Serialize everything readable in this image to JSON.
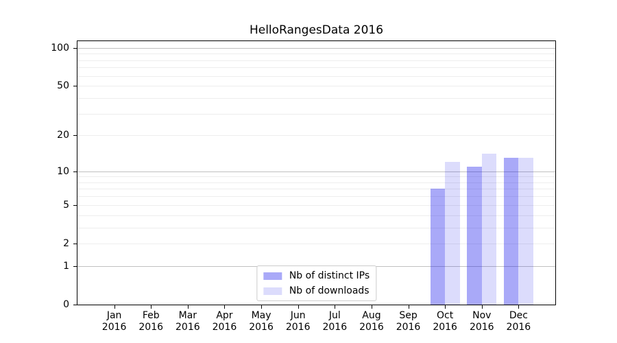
{
  "chart_data": {
    "type": "bar",
    "title": "HelloRangesData 2016",
    "categories": [
      "Jan 2016",
      "Feb 2016",
      "Mar 2016",
      "Apr 2016",
      "May 2016",
      "Jun 2016",
      "Jul 2016",
      "Aug 2016",
      "Sep 2016",
      "Oct 2016",
      "Nov 2016",
      "Dec 2016"
    ],
    "series": [
      {
        "name": "Nb of distinct IPs",
        "color": "#0a0aeb",
        "alpha": 0.35,
        "values": [
          0,
          0,
          0,
          0,
          0,
          0,
          0,
          0,
          0,
          7,
          11,
          13
        ]
      },
      {
        "name": "Nb of downloads",
        "color": "#0a0aeb",
        "alpha": 0.14,
        "values": [
          0,
          0,
          0,
          0,
          0,
          0,
          0,
          0,
          0,
          12,
          14,
          13
        ]
      }
    ],
    "yscale": "log1p",
    "ylim": [
      0,
      113
    ],
    "yticks": [
      0,
      1,
      2,
      5,
      10,
      20,
      50,
      100
    ],
    "grid": {
      "on": true,
      "major_lines": [
        1,
        10,
        100
      ],
      "minor_lines": [
        2,
        3,
        4,
        5,
        6,
        7,
        8,
        9,
        20,
        30,
        40,
        50,
        60,
        70,
        80,
        90
      ],
      "major_color": "#c0c0c0",
      "minor_color": "#ededed"
    },
    "legend_position": "lower center",
    "axis_color": "#000000",
    "background_color": "#ffffff"
  }
}
